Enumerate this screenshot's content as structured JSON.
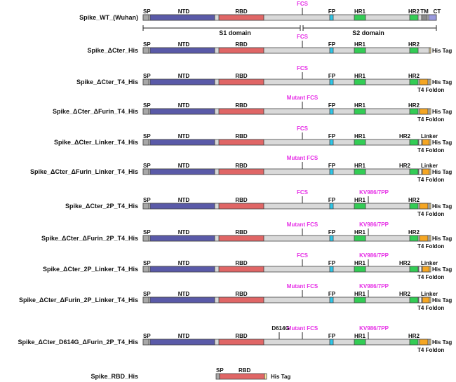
{
  "constructs": [
    {
      "label": "Spike_WT_(Wuhan)",
      "fcs": "FCS",
      "kv": "",
      "d614g": "",
      "linker": "",
      "his": "",
      "foldon": "",
      "tmct": true
    },
    {
      "label": "Spike_ΔCter_His",
      "fcs": "FCS",
      "kv": "",
      "d614g": "",
      "linker": "",
      "his": "His Tag",
      "foldon": "",
      "tmct": false
    },
    {
      "label": "Spike_ΔCter_T4_His",
      "fcs": "FCS",
      "kv": "",
      "d614g": "",
      "linker": "",
      "his": "His Tag",
      "foldon": "T4 Foldon",
      "tmct": false
    },
    {
      "label": "Spike_ΔCter_ΔFurin_T4_His",
      "fcs": "Mutant FCS",
      "kv": "",
      "d614g": "",
      "linker": "",
      "his": "His Tag",
      "foldon": "T4 Foldon",
      "tmct": false
    },
    {
      "label": "Spike_ΔCter_Linker_T4_His",
      "fcs": "FCS",
      "kv": "",
      "d614g": "",
      "linker": "Linker",
      "his": "His Tag",
      "foldon": "T4 Foldon",
      "tmct": false
    },
    {
      "label": "Spike_ΔCter_ΔFurin_Linker_T4_His",
      "fcs": "Mutant FCS",
      "kv": "",
      "d614g": "",
      "linker": "Linker",
      "his": "His Tag",
      "foldon": "T4 Foldon",
      "tmct": false
    },
    {
      "label": "Spike_ΔCter_2P_T4_His",
      "fcs": "FCS",
      "kv": "KV986/7PP",
      "d614g": "",
      "linker": "",
      "his": "His Tag",
      "foldon": "T4 Foldon",
      "tmct": false
    },
    {
      "label": "Spike_ΔCter_ΔFurin_2P_T4_His",
      "fcs": "Mutant FCS",
      "kv": "KV986/7PP",
      "d614g": "",
      "linker": "",
      "his": "His Tag",
      "foldon": "T4 Foldon",
      "tmct": false
    },
    {
      "label": "Spike_ΔCter_2P_Linker_T4_His",
      "fcs": "FCS",
      "kv": "KV986/7PP",
      "d614g": "",
      "linker": "Linker",
      "his": "His Tag",
      "foldon": "T4 Foldon",
      "tmct": false
    },
    {
      "label": "Spike_ΔCter_ΔFurin_2P_Linker_T4_His",
      "fcs": "Mutant FCS",
      "kv": "KV986/7PP",
      "d614g": "",
      "linker": "Linker",
      "his": "His Tag",
      "foldon": "T4 Foldon",
      "tmct": false
    },
    {
      "label": "Spike_ΔCter_D614G_ΔFurin_2P_T4_His",
      "fcs": "Mutant FCS",
      "kv": "KV986/7PP",
      "d614g": "D614G",
      "linker": "",
      "his": "His Tag",
      "foldon": "T4 Foldon",
      "tmct": false
    }
  ],
  "rbd_construct": {
    "label": "Spike_RBD_His",
    "sp": "SP",
    "rbd": "RBD",
    "his": "His Tag"
  },
  "domain_labels": {
    "sp": "SP",
    "ntd": "NTD",
    "rbd": "RBD",
    "fp": "FP",
    "hr1": "HR1",
    "hr2": "HR2",
    "tm": "TM",
    "ct": "CT"
  },
  "subunits": {
    "s1": "S1 domain",
    "s2": "S2 domain"
  },
  "colors": {
    "backbone": "#d9d9d9",
    "sp": "#a8a8a8",
    "ntd": "#5a5aa8",
    "rbd": "#e06666",
    "fp": "#2ec7e8",
    "hr1": "#33cc55",
    "hr2": "#33cc55",
    "foldon": "#f5a623",
    "tm": "#8a8a8a",
    "ct": "#9999dd",
    "magenta": "#e62ee6",
    "his": "#ffe8a0"
  }
}
